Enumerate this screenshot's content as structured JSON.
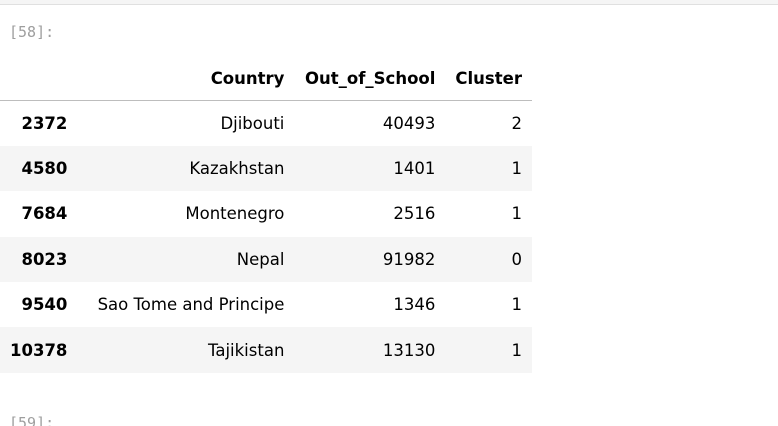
{
  "cell": {
    "prompt": "[58]:",
    "next_prompt": "[59]:"
  },
  "table": {
    "columns": [
      "",
      "Country",
      "Out_of_School",
      "Cluster"
    ],
    "rows": [
      {
        "index": "2372",
        "country": "Djibouti",
        "out_of_school": "40493",
        "cluster": "2"
      },
      {
        "index": "4580",
        "country": "Kazakhstan",
        "out_of_school": "1401",
        "cluster": "1"
      },
      {
        "index": "7684",
        "country": "Montenegro",
        "out_of_school": "2516",
        "cluster": "1"
      },
      {
        "index": "8023",
        "country": "Nepal",
        "out_of_school": "91982",
        "cluster": "0"
      },
      {
        "index": "9540",
        "country": "Sao Tome and Principe",
        "out_of_school": "1346",
        "cluster": "1"
      },
      {
        "index": "10378",
        "country": "Tajikistan",
        "out_of_school": "13130",
        "cluster": "1"
      }
    ]
  }
}
